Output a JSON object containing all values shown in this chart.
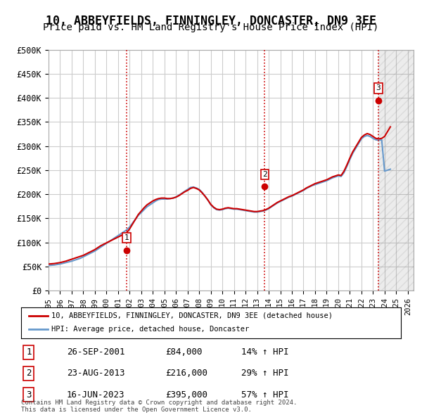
{
  "title": "10, ABBEYFIELDS, FINNINGLEY, DONCASTER, DN9 3EE",
  "subtitle": "Price paid vs. HM Land Registry's House Price Index (HPI)",
  "title_fontsize": 12,
  "subtitle_fontsize": 10,
  "ylabel_ticks": [
    "£0",
    "£50K",
    "£100K",
    "£150K",
    "£200K",
    "£250K",
    "£300K",
    "£350K",
    "£400K",
    "£450K",
    "£500K"
  ],
  "ytick_values": [
    0,
    50000,
    100000,
    150000,
    200000,
    250000,
    300000,
    350000,
    400000,
    450000,
    500000
  ],
  "ylim": [
    0,
    500000
  ],
  "xlim_start": 1995.0,
  "xlim_end": 2026.5,
  "sale_dates": [
    2001.74,
    2013.64,
    2023.46
  ],
  "sale_prices": [
    84000,
    216000,
    395000
  ],
  "sale_labels": [
    "1",
    "2",
    "3"
  ],
  "hpi_color": "#6699cc",
  "price_color": "#cc0000",
  "vline_color": "#cc0000",
  "vline_style": ":",
  "grid_color": "#cccccc",
  "bg_color": "#ffffff",
  "legend_line1": "10, ABBEYFIELDS, FINNINGLEY, DONCASTER, DN9 3EE (detached house)",
  "legend_line2": "HPI: Average price, detached house, Doncaster",
  "table_data": [
    [
      "1",
      "26-SEP-2001",
      "£84,000",
      "14% ↑ HPI"
    ],
    [
      "2",
      "23-AUG-2013",
      "£216,000",
      "29% ↑ HPI"
    ],
    [
      "3",
      "16-JUN-2023",
      "£395,000",
      "57% ↑ HPI"
    ]
  ],
  "footer": "Contains HM Land Registry data © Crown copyright and database right 2024.\nThis data is licensed under the Open Government Licence v3.0.",
  "hpi_data_x": [
    1995.0,
    1995.25,
    1995.5,
    1995.75,
    1996.0,
    1996.25,
    1996.5,
    1996.75,
    1997.0,
    1997.25,
    1997.5,
    1997.75,
    1998.0,
    1998.25,
    1998.5,
    1998.75,
    1999.0,
    1999.25,
    1999.5,
    1999.75,
    2000.0,
    2000.25,
    2000.5,
    2000.75,
    2001.0,
    2001.25,
    2001.5,
    2001.75,
    2002.0,
    2002.25,
    2002.5,
    2002.75,
    2003.0,
    2003.25,
    2003.5,
    2003.75,
    2004.0,
    2004.25,
    2004.5,
    2004.75,
    2005.0,
    2005.25,
    2005.5,
    2005.75,
    2006.0,
    2006.25,
    2006.5,
    2006.75,
    2007.0,
    2007.25,
    2007.5,
    2007.75,
    2008.0,
    2008.25,
    2008.5,
    2008.75,
    2009.0,
    2009.25,
    2009.5,
    2009.75,
    2010.0,
    2010.25,
    2010.5,
    2010.75,
    2011.0,
    2011.25,
    2011.5,
    2011.75,
    2012.0,
    2012.25,
    2012.5,
    2012.75,
    2013.0,
    2013.25,
    2013.5,
    2013.75,
    2014.0,
    2014.25,
    2014.5,
    2014.75,
    2015.0,
    2015.25,
    2015.5,
    2015.75,
    2016.0,
    2016.25,
    2016.5,
    2016.75,
    2017.0,
    2017.25,
    2017.5,
    2017.75,
    2018.0,
    2018.25,
    2018.5,
    2018.75,
    2019.0,
    2019.25,
    2019.5,
    2019.75,
    2020.0,
    2020.25,
    2020.5,
    2020.75,
    2021.0,
    2021.25,
    2021.5,
    2021.75,
    2022.0,
    2022.25,
    2022.5,
    2022.75,
    2023.0,
    2023.25,
    2023.5,
    2023.75,
    2024.0,
    2024.25,
    2024.5
  ],
  "hpi_data_y": [
    52000,
    52500,
    53000,
    54000,
    55000,
    56500,
    58000,
    59500,
    61000,
    63000,
    65000,
    67000,
    70000,
    73000,
    76000,
    79000,
    82000,
    86000,
    90000,
    94000,
    98000,
    102000,
    106000,
    110000,
    114000,
    118000,
    122000,
    126000,
    132000,
    140000,
    148000,
    156000,
    162000,
    168000,
    174000,
    178000,
    182000,
    186000,
    189000,
    190000,
    190000,
    190000,
    191000,
    192000,
    194000,
    198000,
    202000,
    206000,
    210000,
    214000,
    215000,
    213000,
    210000,
    204000,
    196000,
    188000,
    178000,
    172000,
    168000,
    167000,
    168000,
    170000,
    171000,
    170000,
    169000,
    169000,
    168000,
    167000,
    166000,
    165000,
    164000,
    163000,
    163000,
    164000,
    165000,
    167000,
    170000,
    174000,
    178000,
    182000,
    185000,
    188000,
    191000,
    194000,
    196000,
    199000,
    202000,
    205000,
    208000,
    212000,
    215000,
    218000,
    220000,
    222000,
    224000,
    226000,
    228000,
    231000,
    234000,
    236000,
    238000,
    237000,
    245000,
    258000,
    272000,
    285000,
    295000,
    305000,
    315000,
    320000,
    322000,
    320000,
    316000,
    313000,
    312000,
    313000,
    248000,
    250000,
    252000
  ],
  "price_line_x": [
    1995.0,
    1995.25,
    1995.5,
    1995.75,
    1996.0,
    1996.25,
    1996.5,
    1996.75,
    1997.0,
    1997.25,
    1997.5,
    1997.75,
    1998.0,
    1998.25,
    1998.5,
    1998.75,
    1999.0,
    1999.25,
    1999.5,
    1999.75,
    2000.0,
    2000.25,
    2000.5,
    2000.75,
    2001.0,
    2001.25,
    2001.5,
    2001.75,
    2002.0,
    2002.25,
    2002.5,
    2002.75,
    2003.0,
    2003.25,
    2003.5,
    2003.75,
    2004.0,
    2004.25,
    2004.5,
    2004.75,
    2005.0,
    2005.25,
    2005.5,
    2005.75,
    2006.0,
    2006.25,
    2006.5,
    2006.75,
    2007.0,
    2007.25,
    2007.5,
    2007.75,
    2008.0,
    2008.25,
    2008.5,
    2008.75,
    2009.0,
    2009.25,
    2009.5,
    2009.75,
    2010.0,
    2010.25,
    2010.5,
    2010.75,
    2011.0,
    2011.25,
    2011.5,
    2011.75,
    2012.0,
    2012.25,
    2012.5,
    2012.75,
    2013.0,
    2013.25,
    2013.5,
    2013.75,
    2014.0,
    2014.25,
    2014.5,
    2014.75,
    2015.0,
    2015.25,
    2015.5,
    2015.75,
    2016.0,
    2016.25,
    2016.5,
    2016.75,
    2017.0,
    2017.25,
    2017.5,
    2017.75,
    2018.0,
    2018.25,
    2018.5,
    2018.75,
    2019.0,
    2019.25,
    2019.5,
    2019.75,
    2020.0,
    2020.25,
    2020.5,
    2020.75,
    2021.0,
    2021.25,
    2021.5,
    2021.75,
    2022.0,
    2022.25,
    2022.5,
    2022.75,
    2023.0,
    2023.25,
    2023.5,
    2023.75,
    2024.0,
    2024.25,
    2024.5
  ],
  "price_line_y": [
    55000,
    55500,
    56000,
    57000,
    58000,
    59500,
    61000,
    63000,
    65000,
    67000,
    69000,
    71000,
    73000,
    76000,
    79000,
    82000,
    85000,
    89000,
    93000,
    96000,
    99000,
    102000,
    105000,
    108000,
    111000,
    114000,
    117000,
    120000,
    128000,
    138000,
    148000,
    158000,
    165000,
    172000,
    178000,
    182000,
    186000,
    189000,
    191000,
    192000,
    192000,
    191000,
    191000,
    192000,
    194000,
    197000,
    201000,
    205000,
    208000,
    212000,
    214000,
    212000,
    209000,
    203000,
    196000,
    188000,
    179000,
    173000,
    169000,
    168000,
    169000,
    171000,
    172000,
    171000,
    170000,
    170000,
    169000,
    168000,
    167000,
    166000,
    165000,
    164000,
    164000,
    165000,
    166000,
    168000,
    171000,
    175000,
    179000,
    183000,
    186000,
    189000,
    192000,
    195000,
    197000,
    200000,
    203000,
    206000,
    209000,
    213000,
    216000,
    219000,
    222000,
    224000,
    226000,
    228000,
    230000,
    233000,
    236000,
    238000,
    240000,
    239000,
    248000,
    261000,
    275000,
    288000,
    298000,
    308000,
    318000,
    323000,
    326000,
    324000,
    320000,
    316000,
    315000,
    316000,
    320000,
    330000,
    340000
  ],
  "hatch_region_x1": 2023.46,
  "hatch_region_x2": 2026.5
}
